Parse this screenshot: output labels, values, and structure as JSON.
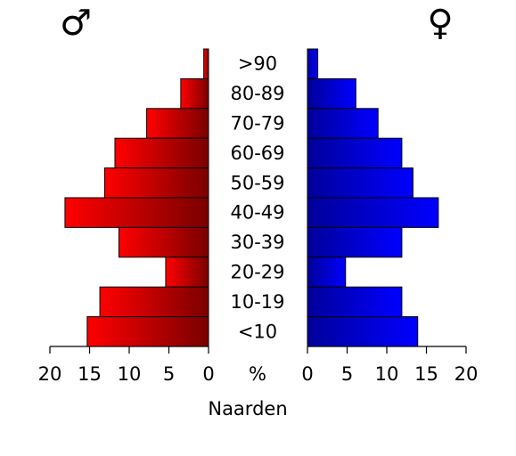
{
  "chart_data": {
    "type": "pyramid",
    "xlabel": "Naarden",
    "unit_label": "%",
    "categories": [
      ">90",
      "80-89",
      "70-79",
      "60-69",
      "50-59",
      "40-49",
      "30-39",
      "20-29",
      "10-19",
      "<10"
    ],
    "series": [
      {
        "name": "♂",
        "color": "#ff0000",
        "values": [
          0.6,
          3.5,
          7.8,
          11.8,
          13.1,
          18.1,
          11.3,
          5.4,
          13.7,
          15.3
        ]
      },
      {
        "name": "♀",
        "color": "#0000ff",
        "values": [
          1.3,
          6.1,
          8.9,
          11.9,
          13.3,
          16.5,
          11.9,
          4.8,
          11.9,
          13.9
        ]
      }
    ],
    "xlim": [
      0,
      20
    ],
    "xticks": [
      0,
      5,
      10,
      15,
      20
    ]
  }
}
